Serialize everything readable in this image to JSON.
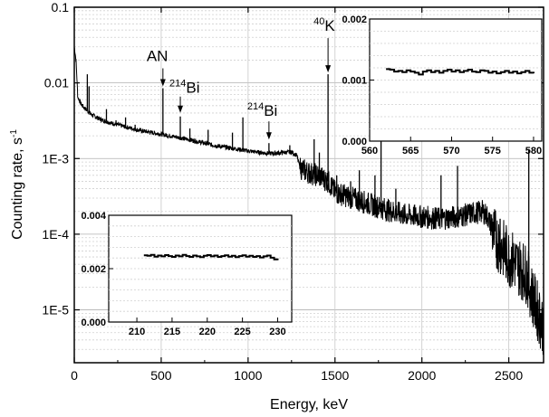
{
  "chart_data": [
    {
      "type": "line",
      "xlabel": "Energy, keV",
      "ylabel_main": "Counting rate, s",
      "ylabel_sup": "-1",
      "xlim": [
        0,
        2700
      ],
      "ylim": [
        2e-06,
        0.1
      ],
      "log_y": true,
      "grid": true,
      "x_ticks": [
        0,
        500,
        1000,
        1500,
        2000,
        2500
      ],
      "x_tick_labels": [
        "0",
        "500",
        "1000",
        "1500",
        "2000",
        "2500"
      ],
      "y_ticks": [
        0.1,
        0.01,
        0.001,
        0.0001,
        1e-05
      ],
      "y_tick_labels": [
        "0.1",
        "0.01",
        "1E-3",
        "1E-4",
        "1E-5"
      ],
      "continuum": [
        [
          0,
          0.03
        ],
        [
          10,
          0.02
        ],
        [
          20,
          0.0065
        ],
        [
          40,
          0.0052
        ],
        [
          60,
          0.0046
        ],
        [
          80,
          0.0042
        ],
        [
          100,
          0.0038
        ],
        [
          150,
          0.0033
        ],
        [
          200,
          0.003
        ],
        [
          300,
          0.0026
        ],
        [
          400,
          0.0023
        ],
        [
          500,
          0.0021
        ],
        [
          600,
          0.0019
        ],
        [
          700,
          0.0017
        ],
        [
          800,
          0.0015
        ],
        [
          900,
          0.00138
        ],
        [
          1000,
          0.00126
        ],
        [
          1100,
          0.00118
        ],
        [
          1150,
          0.00117
        ],
        [
          1200,
          0.0012
        ],
        [
          1250,
          0.00122
        ],
        [
          1280,
          0.0011
        ],
        [
          1300,
          0.00075
        ],
        [
          1350,
          0.00065
        ],
        [
          1400,
          0.0006
        ],
        [
          1460,
          0.0005
        ],
        [
          1500,
          0.00036
        ],
        [
          1600,
          0.0003
        ],
        [
          1700,
          0.00025
        ],
        [
          1800,
          0.00021
        ],
        [
          1900,
          0.00018
        ],
        [
          2000,
          0.00017
        ],
        [
          2100,
          0.00016
        ],
        [
          2200,
          0.00017
        ],
        [
          2300,
          0.00019
        ],
        [
          2350,
          0.0002
        ],
        [
          2380,
          0.00017
        ],
        [
          2420,
          9e-05
        ],
        [
          2500,
          5e-05
        ],
        [
          2600,
          3e-05
        ],
        [
          2650,
          1.2e-05
        ],
        [
          2700,
          6e-06
        ]
      ],
      "peaks": [
        [
          75,
          0.013
        ],
        [
          85,
          0.009
        ],
        [
          185,
          0.0045
        ],
        [
          240,
          0.0032
        ],
        [
          295,
          0.0035
        ],
        [
          350,
          0.0028
        ],
        [
          510,
          0.0085
        ],
        [
          610,
          0.0036
        ],
        [
          665,
          0.0025
        ],
        [
          770,
          0.0024
        ],
        [
          910,
          0.0022
        ],
        [
          970,
          0.0035
        ],
        [
          1120,
          0.0016
        ],
        [
          1240,
          0.0015
        ],
        [
          1380,
          0.0018
        ],
        [
          1410,
          0.0012
        ],
        [
          1460,
          0.013
        ],
        [
          1510,
          0.0006
        ],
        [
          1590,
          0.0005
        ],
        [
          1640,
          0.0007
        ],
        [
          1730,
          0.0006
        ],
        [
          1765,
          0.0018
        ],
        [
          1850,
          0.0004
        ],
        [
          2110,
          0.0006
        ],
        [
          2205,
          0.0008
        ],
        [
          2450,
          0.00016
        ],
        [
          2615,
          0.0013
        ]
      ],
      "annotations": [
        {
          "label": "AN",
          "sup": "",
          "x": 510,
          "y": 0.0085
        },
        {
          "label": "Bi",
          "sup": "214",
          "x": 610,
          "y": 0.0036
        },
        {
          "label": "Bi",
          "sup": "214",
          "x": 1120,
          "y": 0.0016
        },
        {
          "label": "K",
          "sup": "40",
          "x": 1460,
          "y": 0.013
        }
      ]
    },
    {
      "type": "line",
      "inset": "top-right",
      "xlim": [
        560,
        581
      ],
      "ylim": [
        0,
        0.002
      ],
      "x_ticks": [
        560,
        565,
        570,
        575,
        580
      ],
      "x_tick_labels": [
        "560",
        "565",
        "570",
        "575",
        "580"
      ],
      "y_ticks": [
        0,
        0.001,
        0.002
      ],
      "y_tick_labels": [
        "0.000",
        "0.001",
        "0.002"
      ],
      "x": [
        562,
        562.5,
        563,
        563.5,
        564,
        564.5,
        565,
        565.5,
        566,
        566.5,
        567,
        567.5,
        568,
        568.5,
        569,
        569.5,
        570,
        570.5,
        571,
        571.5,
        572,
        572.5,
        573,
        573.5,
        574,
        574.5,
        575,
        575.5,
        576,
        576.5,
        577,
        577.5,
        578,
        578.5,
        579,
        579.5,
        580
      ],
      "y": [
        0.00118,
        0.00117,
        0.00114,
        0.00115,
        0.00113,
        0.00116,
        0.00114,
        0.00112,
        0.00109,
        0.00114,
        0.00116,
        0.00113,
        0.00115,
        0.00112,
        0.00115,
        0.00117,
        0.00114,
        0.00116,
        0.00113,
        0.00115,
        0.00117,
        0.00114,
        0.00113,
        0.00116,
        0.00115,
        0.00112,
        0.00114,
        0.00111,
        0.00113,
        0.00115,
        0.00112,
        0.00114,
        0.00111,
        0.00113,
        0.00115,
        0.00112,
        0.00111
      ]
    },
    {
      "type": "line",
      "inset": "bottom-left",
      "xlim": [
        206,
        232
      ],
      "ylim": [
        0,
        0.004
      ],
      "x_ticks": [
        210,
        215,
        220,
        225,
        230
      ],
      "x_tick_labels": [
        "210",
        "215",
        "220",
        "225",
        "230"
      ],
      "y_ticks": [
        0,
        0.002,
        0.004
      ],
      "y_tick_labels": [
        "0.000",
        "0.002",
        "0.004"
      ],
      "x": [
        211,
        211.5,
        212,
        212.5,
        213,
        213.5,
        214,
        214.5,
        215,
        215.5,
        216,
        216.5,
        217,
        217.5,
        218,
        218.5,
        219,
        219.5,
        220,
        220.5,
        221,
        221.5,
        222,
        222.5,
        223,
        223.5,
        224,
        224.5,
        225,
        225.5,
        226,
        226.5,
        227,
        227.5,
        228,
        228.5,
        229,
        229.5,
        230
      ],
      "y": [
        0.0025,
        0.00248,
        0.00252,
        0.00245,
        0.00249,
        0.00246,
        0.00251,
        0.00247,
        0.00244,
        0.00249,
        0.00246,
        0.00252,
        0.00247,
        0.00244,
        0.00249,
        0.00246,
        0.00243,
        0.00248,
        0.00251,
        0.00246,
        0.00249,
        0.00244,
        0.00247,
        0.0025,
        0.00245,
        0.00248,
        0.00243,
        0.00247,
        0.0025,
        0.00245,
        0.00248,
        0.00244,
        0.00247,
        0.00242,
        0.00246,
        0.00249,
        0.00241,
        0.00235,
        0.00232
      ]
    }
  ]
}
